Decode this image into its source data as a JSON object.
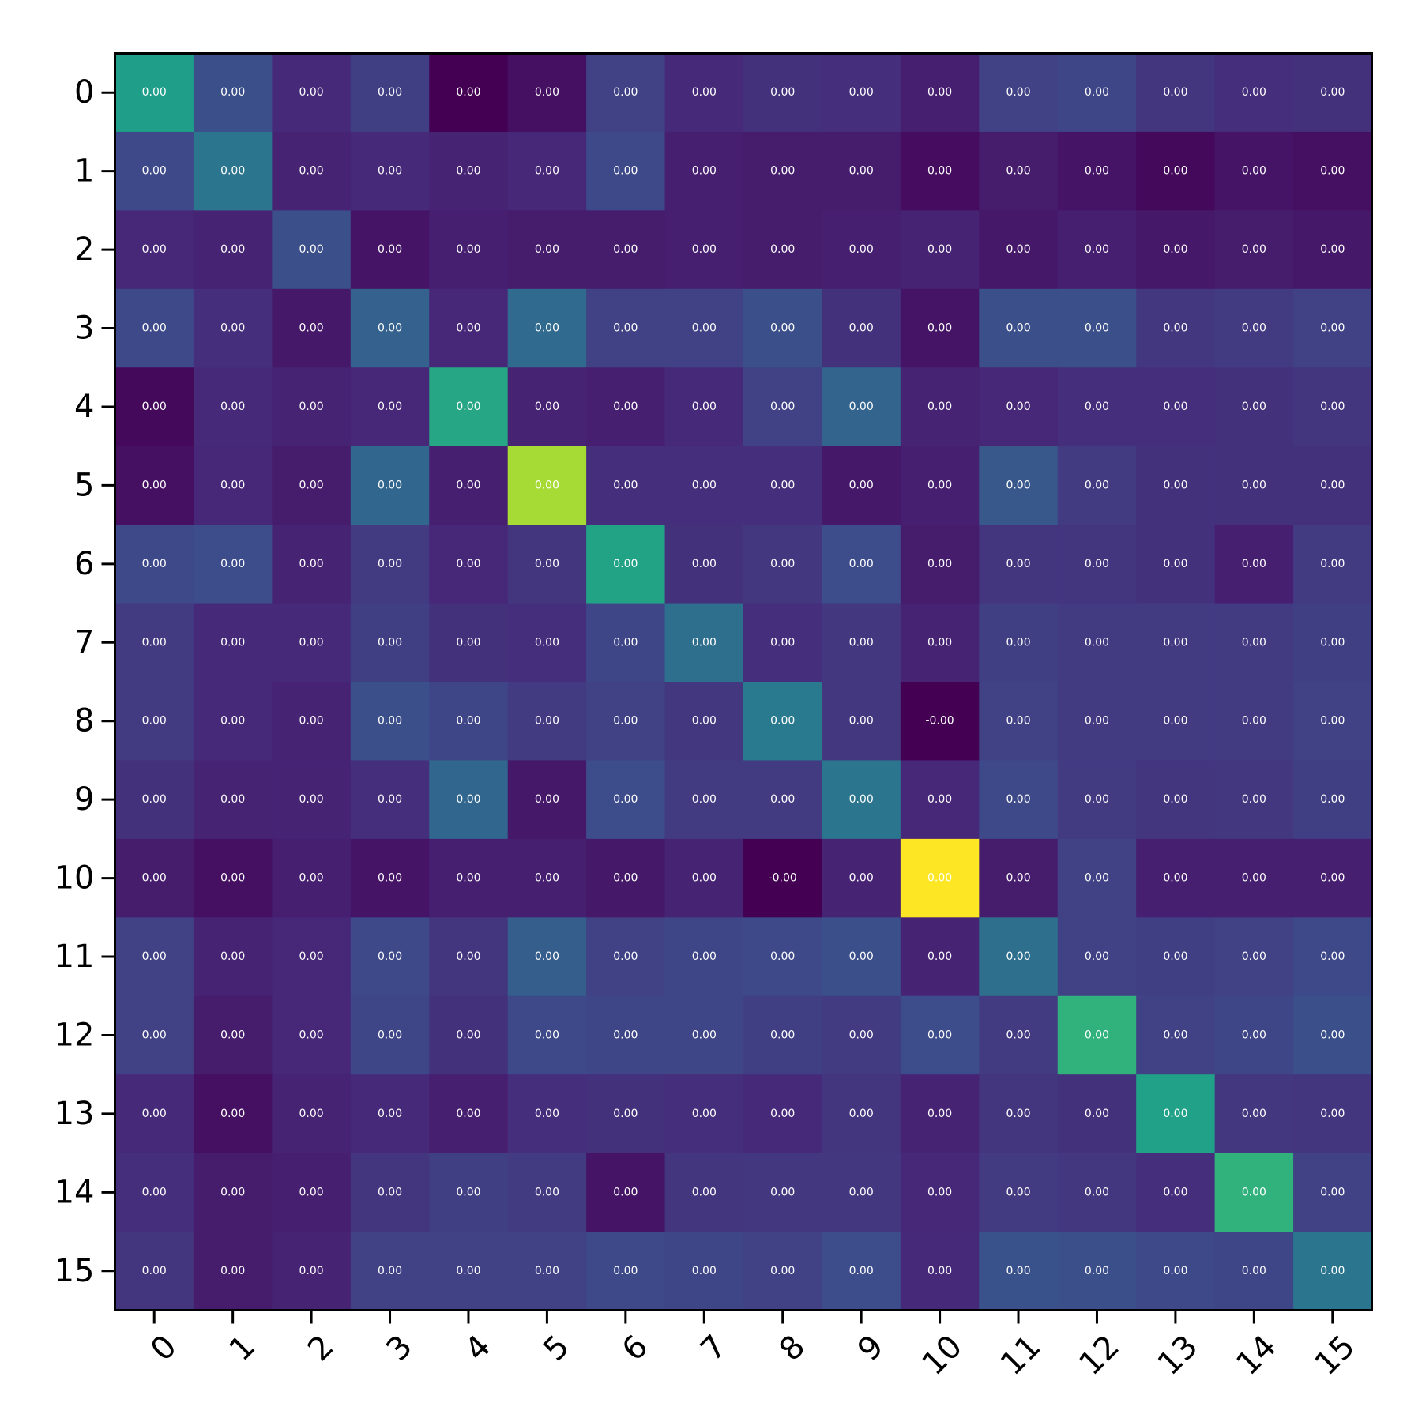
{
  "chart_data": {
    "type": "heatmap",
    "title": "",
    "xlabel": "",
    "ylabel": "",
    "x_tick_labels": [
      "0",
      "1",
      "2",
      "3",
      "4",
      "5",
      "6",
      "7",
      "8",
      "9",
      "10",
      "11",
      "12",
      "13",
      "14",
      "15"
    ],
    "y_tick_labels": [
      "0",
      "1",
      "2",
      "3",
      "4",
      "5",
      "6",
      "7",
      "8",
      "9",
      "10",
      "11",
      "12",
      "13",
      "14",
      "15"
    ],
    "colormap": "viridis",
    "color_intensity": [
      [
        0.5,
        0.22,
        0.11,
        0.17,
        0.0,
        0.04,
        0.18,
        0.11,
        0.13,
        0.12,
        0.08,
        0.18,
        0.19,
        0.14,
        0.12,
        0.13
      ],
      [
        0.2,
        0.35,
        0.09,
        0.11,
        0.09,
        0.1,
        0.2,
        0.08,
        0.07,
        0.07,
        0.03,
        0.07,
        0.05,
        0.02,
        0.05,
        0.04
      ],
      [
        0.1,
        0.09,
        0.22,
        0.05,
        0.08,
        0.07,
        0.07,
        0.08,
        0.07,
        0.08,
        0.09,
        0.06,
        0.08,
        0.06,
        0.07,
        0.06
      ],
      [
        0.2,
        0.12,
        0.06,
        0.28,
        0.1,
        0.31,
        0.18,
        0.18,
        0.22,
        0.13,
        0.05,
        0.22,
        0.22,
        0.15,
        0.16,
        0.18
      ],
      [
        0.02,
        0.11,
        0.09,
        0.1,
        0.53,
        0.09,
        0.08,
        0.11,
        0.18,
        0.29,
        0.09,
        0.1,
        0.12,
        0.12,
        0.13,
        0.14
      ],
      [
        0.04,
        0.1,
        0.07,
        0.3,
        0.08,
        0.78,
        0.12,
        0.12,
        0.12,
        0.06,
        0.08,
        0.25,
        0.16,
        0.13,
        0.13,
        0.13
      ],
      [
        0.2,
        0.21,
        0.09,
        0.16,
        0.1,
        0.14,
        0.52,
        0.13,
        0.15,
        0.21,
        0.07,
        0.14,
        0.14,
        0.13,
        0.08,
        0.16
      ],
      [
        0.16,
        0.11,
        0.11,
        0.17,
        0.13,
        0.12,
        0.19,
        0.33,
        0.12,
        0.15,
        0.09,
        0.17,
        0.16,
        0.16,
        0.16,
        0.17
      ],
      [
        0.16,
        0.11,
        0.09,
        0.22,
        0.19,
        0.16,
        0.18,
        0.15,
        0.37,
        0.15,
        0.0,
        0.18,
        0.16,
        0.16,
        0.16,
        0.18
      ],
      [
        0.13,
        0.09,
        0.09,
        0.12,
        0.3,
        0.06,
        0.21,
        0.16,
        0.16,
        0.35,
        0.1,
        0.2,
        0.16,
        0.14,
        0.15,
        0.17
      ],
      [
        0.07,
        0.04,
        0.08,
        0.05,
        0.08,
        0.08,
        0.06,
        0.09,
        0.0,
        0.09,
        1.0,
        0.07,
        0.18,
        0.08,
        0.08,
        0.08
      ],
      [
        0.18,
        0.09,
        0.1,
        0.2,
        0.14,
        0.27,
        0.18,
        0.19,
        0.2,
        0.22,
        0.09,
        0.33,
        0.18,
        0.17,
        0.18,
        0.2
      ],
      [
        0.18,
        0.07,
        0.1,
        0.19,
        0.13,
        0.2,
        0.19,
        0.19,
        0.17,
        0.16,
        0.21,
        0.16,
        0.58,
        0.18,
        0.19,
        0.22
      ],
      [
        0.11,
        0.04,
        0.09,
        0.11,
        0.08,
        0.12,
        0.13,
        0.12,
        0.11,
        0.14,
        0.09,
        0.14,
        0.13,
        0.51,
        0.15,
        0.14
      ],
      [
        0.12,
        0.07,
        0.08,
        0.14,
        0.17,
        0.16,
        0.05,
        0.14,
        0.15,
        0.15,
        0.1,
        0.16,
        0.15,
        0.12,
        0.58,
        0.18
      ],
      [
        0.14,
        0.07,
        0.09,
        0.18,
        0.18,
        0.18,
        0.2,
        0.19,
        0.18,
        0.21,
        0.11,
        0.23,
        0.22,
        0.2,
        0.19,
        0.35
      ]
    ],
    "cell_labels": [
      [
        "0.00",
        "0.00",
        "0.00",
        "0.00",
        "0.00",
        "0.00",
        "0.00",
        "0.00",
        "0.00",
        "0.00",
        "0.00",
        "0.00",
        "0.00",
        "0.00",
        "0.00",
        "0.00"
      ],
      [
        "0.00",
        "0.00",
        "0.00",
        "0.00",
        "0.00",
        "0.00",
        "0.00",
        "0.00",
        "0.00",
        "0.00",
        "0.00",
        "0.00",
        "0.00",
        "0.00",
        "0.00",
        "0.00"
      ],
      [
        "0.00",
        "0.00",
        "0.00",
        "0.00",
        "0.00",
        "0.00",
        "0.00",
        "0.00",
        "0.00",
        "0.00",
        "0.00",
        "0.00",
        "0.00",
        "0.00",
        "0.00",
        "0.00"
      ],
      [
        "0.00",
        "0.00",
        "0.00",
        "0.00",
        "0.00",
        "0.00",
        "0.00",
        "0.00",
        "0.00",
        "0.00",
        "0.00",
        "0.00",
        "0.00",
        "0.00",
        "0.00",
        "0.00"
      ],
      [
        "0.00",
        "0.00",
        "0.00",
        "0.00",
        "0.00",
        "0.00",
        "0.00",
        "0.00",
        "0.00",
        "0.00",
        "0.00",
        "0.00",
        "0.00",
        "0.00",
        "0.00",
        "0.00"
      ],
      [
        "0.00",
        "0.00",
        "0.00",
        "0.00",
        "0.00",
        "0.00",
        "0.00",
        "0.00",
        "0.00",
        "0.00",
        "0.00",
        "0.00",
        "0.00",
        "0.00",
        "0.00",
        "0.00"
      ],
      [
        "0.00",
        "0.00",
        "0.00",
        "0.00",
        "0.00",
        "0.00",
        "0.00",
        "0.00",
        "0.00",
        "0.00",
        "0.00",
        "0.00",
        "0.00",
        "0.00",
        "0.00",
        "0.00"
      ],
      [
        "0.00",
        "0.00",
        "0.00",
        "0.00",
        "0.00",
        "0.00",
        "0.00",
        "0.00",
        "0.00",
        "0.00",
        "0.00",
        "0.00",
        "0.00",
        "0.00",
        "0.00",
        "0.00"
      ],
      [
        "0.00",
        "0.00",
        "0.00",
        "0.00",
        "0.00",
        "0.00",
        "0.00",
        "0.00",
        "0.00",
        "0.00",
        "-0.00",
        "0.00",
        "0.00",
        "0.00",
        "0.00",
        "0.00"
      ],
      [
        "0.00",
        "0.00",
        "0.00",
        "0.00",
        "0.00",
        "0.00",
        "0.00",
        "0.00",
        "0.00",
        "0.00",
        "0.00",
        "0.00",
        "0.00",
        "0.00",
        "0.00",
        "0.00"
      ],
      [
        "0.00",
        "0.00",
        "0.00",
        "0.00",
        "0.00",
        "0.00",
        "0.00",
        "0.00",
        "-0.00",
        "0.00",
        "0.00",
        "0.00",
        "0.00",
        "0.00",
        "0.00",
        "0.00"
      ],
      [
        "0.00",
        "0.00",
        "0.00",
        "0.00",
        "0.00",
        "0.00",
        "0.00",
        "0.00",
        "0.00",
        "0.00",
        "0.00",
        "0.00",
        "0.00",
        "0.00",
        "0.00",
        "0.00"
      ],
      [
        "0.00",
        "0.00",
        "0.00",
        "0.00",
        "0.00",
        "0.00",
        "0.00",
        "0.00",
        "0.00",
        "0.00",
        "0.00",
        "0.00",
        "0.00",
        "0.00",
        "0.00",
        "0.00"
      ],
      [
        "0.00",
        "0.00",
        "0.00",
        "0.00",
        "0.00",
        "0.00",
        "0.00",
        "0.00",
        "0.00",
        "0.00",
        "0.00",
        "0.00",
        "0.00",
        "0.00",
        "0.00",
        "0.00"
      ],
      [
        "0.00",
        "0.00",
        "0.00",
        "0.00",
        "0.00",
        "0.00",
        "0.00",
        "0.00",
        "0.00",
        "0.00",
        "0.00",
        "0.00",
        "0.00",
        "0.00",
        "0.00",
        "0.00"
      ],
      [
        "0.00",
        "0.00",
        "0.00",
        "0.00",
        "0.00",
        "0.00",
        "0.00",
        "0.00",
        "0.00",
        "0.00",
        "0.00",
        "0.00",
        "0.00",
        "0.00",
        "0.00",
        "0.00"
      ]
    ],
    "colorbar": false,
    "grid": false
  }
}
